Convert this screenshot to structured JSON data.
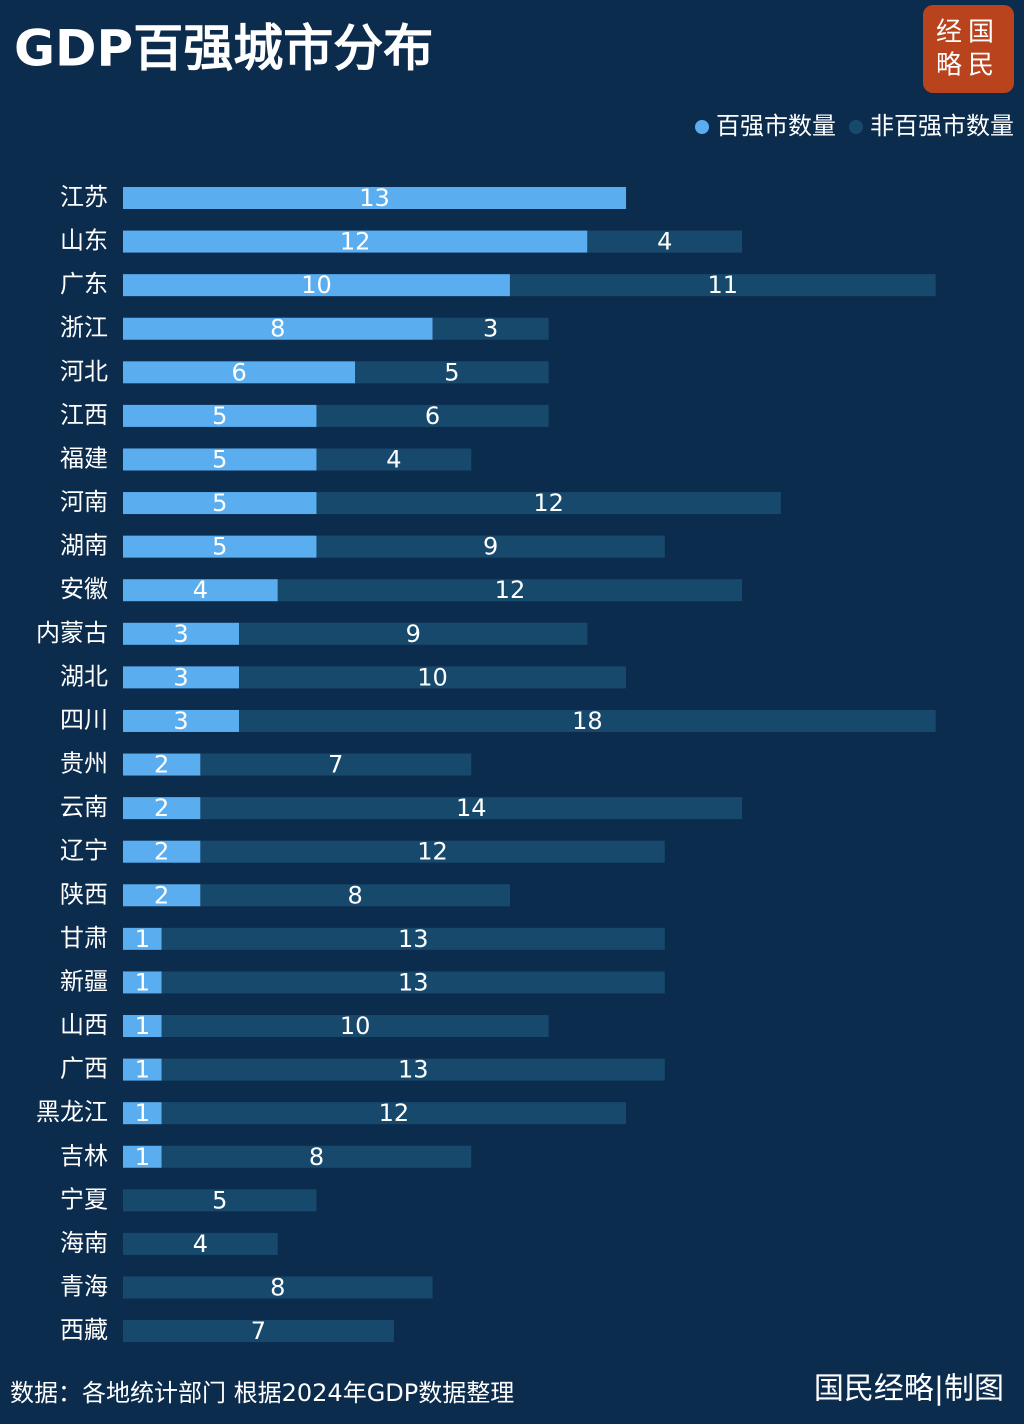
{
  "chart_data": {
    "type": "stacked_barh",
    "title": "GDP百强城市分布",
    "categories": [
      "江苏",
      "山东",
      "广东",
      "浙江",
      "河北",
      "江西",
      "福建",
      "河南",
      "湖南",
      "安徽",
      "内蒙古",
      "湖北",
      "四川",
      "贵州",
      "云南",
      "辽宁",
      "陕西",
      "甘肃",
      "新疆",
      "山西",
      "广西",
      "黑龙江",
      "吉林",
      "宁夏",
      "海南",
      "青海",
      "西藏"
    ],
    "series": [
      {
        "name": "百强市数量",
        "color": "#5aaef0",
        "values": [
          13,
          12,
          10,
          8,
          6,
          5,
          5,
          5,
          5,
          4,
          3,
          3,
          3,
          2,
          2,
          2,
          2,
          1,
          1,
          1,
          1,
          1,
          1,
          0,
          0,
          0,
          0
        ]
      },
      {
        "name": "非百强市数量",
        "color": "#17496d",
        "values": [
          0,
          4,
          11,
          3,
          5,
          6,
          4,
          12,
          9,
          12,
          9,
          10,
          18,
          7,
          14,
          12,
          8,
          13,
          13,
          10,
          13,
          12,
          8,
          5,
          4,
          8,
          7
        ]
      }
    ],
    "xlim": [
      0,
      23
    ],
    "legend": "top-right",
    "source": "数据：各地统计部门 根据2024年GDP数据整理",
    "credit": "国民经略|制图",
    "logo": [
      "经国",
      "略民"
    ]
  }
}
